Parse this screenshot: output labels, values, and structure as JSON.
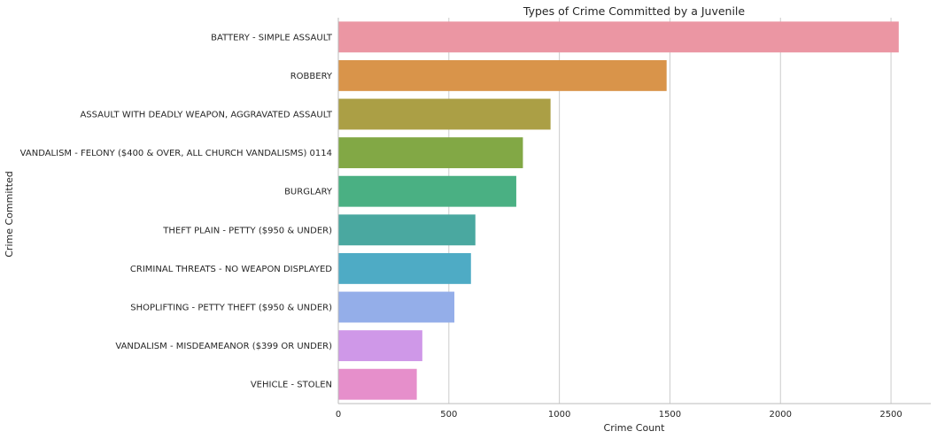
{
  "chart_data": {
    "type": "bar",
    "orientation": "horizontal",
    "title": "Types of Crime Committed by a Juvenile",
    "xlabel": "Crime Count",
    "ylabel": "Crime Committed",
    "xlim": [
      0,
      2680
    ],
    "xticks": [
      0,
      500,
      1000,
      1500,
      2000,
      2500
    ],
    "grid": "vertical",
    "categories": [
      "BATTERY - SIMPLE ASSAULT",
      "ROBBERY",
      "ASSAULT WITH DEADLY WEAPON, AGGRAVATED ASSAULT",
      "VANDALISM - FELONY ($400 & OVER, ALL CHURCH VANDALISMS) 0114",
      "BURGLARY",
      "THEFT PLAIN - PETTY ($950 & UNDER)",
      "CRIMINAL THREATS - NO WEAPON DISPLAYED",
      "SHOPLIFTING - PETTY THEFT ($950 & UNDER)",
      "VANDALISM - MISDEAMEANOR ($399 OR UNDER)",
      "VEHICLE - STOLEN"
    ],
    "values": [
      2535,
      1485,
      960,
      835,
      805,
      620,
      600,
      525,
      380,
      355
    ],
    "colors": [
      "#eb96a3",
      "#d9944a",
      "#ab9f45",
      "#82a845",
      "#4ab083",
      "#4aa8a0",
      "#4eabc5",
      "#94aee9",
      "#cf98e8",
      "#e68fcb"
    ]
  }
}
